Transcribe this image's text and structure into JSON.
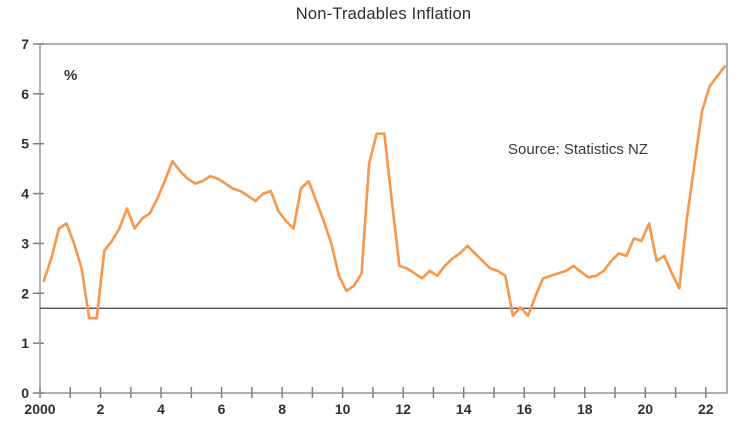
{
  "page": {
    "background": "#FFFFFF"
  },
  "header": {
    "title": "Non-Tradables Inflation"
  },
  "annotations": {
    "unit_label": "%",
    "source_note": "Source: Statistics NZ"
  },
  "chart_data": {
    "type": "line",
    "title": "Non-Tradables Inflation",
    "xlabel": "",
    "ylabel": "%",
    "ylim": [
      0,
      7
    ],
    "xlim": [
      2000,
      2022.7
    ],
    "grid": false,
    "legend_position": "none",
    "x_start": 2000.125,
    "x_step": 0.25,
    "x_minor_tick_interval": 1,
    "y_ticks": [
      0,
      1,
      2,
      3,
      4,
      5,
      6,
      7
    ],
    "x_ticks": [
      {
        "label": "2000",
        "year": 2000
      },
      {
        "label": "2",
        "year": 2002
      },
      {
        "label": "4",
        "year": 2004
      },
      {
        "label": "6",
        "year": 2006
      },
      {
        "label": "8",
        "year": 2008
      },
      {
        "label": "10",
        "year": 2010
      },
      {
        "label": "12",
        "year": 2012
      },
      {
        "label": "14",
        "year": 2014
      },
      {
        "label": "16",
        "year": 2016
      },
      {
        "label": "18",
        "year": 2018
      },
      {
        "label": "20",
        "year": 2020
      },
      {
        "label": "22",
        "year": 2022
      }
    ],
    "reference_line": {
      "value": 1.7
    },
    "colors": {
      "frame": "#7F7F7F",
      "tick_text": "#303030",
      "reference": "#3F3F3F",
      "accent": "#F8964B"
    },
    "series": [
      {
        "name": "Non-Tradables Inflation",
        "color": "#F8964B",
        "period": "quarterly, 2000Q1–2022Q3",
        "values": [
          2.25,
          2.7,
          3.3,
          3.4,
          3.0,
          2.5,
          1.5,
          1.5,
          2.85,
          3.05,
          3.3,
          3.7,
          3.3,
          3.5,
          3.6,
          3.9,
          4.25,
          4.65,
          4.45,
          4.3,
          4.2,
          4.25,
          4.35,
          4.3,
          4.2,
          4.1,
          4.05,
          3.95,
          3.85,
          4.0,
          4.05,
          3.65,
          3.45,
          3.3,
          4.1,
          4.25,
          3.85,
          3.45,
          3.0,
          2.35,
          2.05,
          2.15,
          2.4,
          4.6,
          5.2,
          5.2,
          3.85,
          2.55,
          2.5,
          2.4,
          2.3,
          2.45,
          2.35,
          2.55,
          2.7,
          2.8,
          2.95,
          2.8,
          2.65,
          2.5,
          2.45,
          2.35,
          1.55,
          1.72,
          1.55,
          1.95,
          2.3,
          2.35,
          2.4,
          2.45,
          2.55,
          2.43,
          2.32,
          2.35,
          2.45,
          2.65,
          2.8,
          2.75,
          3.1,
          3.05,
          3.4,
          2.65,
          2.75,
          2.4,
          2.1,
          3.5,
          4.6,
          5.65,
          6.15,
          6.35,
          6.55
        ]
      }
    ]
  }
}
